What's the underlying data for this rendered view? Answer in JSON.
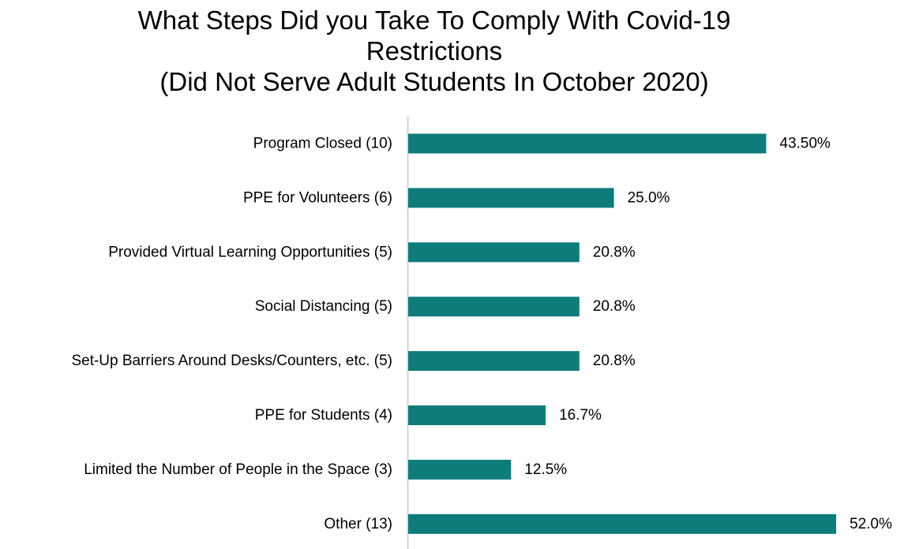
{
  "chart_data": {
    "type": "bar",
    "orientation": "horizontal",
    "title_lines": [
      "What Steps Did you Take To Comply With Covid-19",
      "Restrictions",
      "(Did Not Serve Adult Students In October 2020)"
    ],
    "categories": [
      "Program Closed (10)",
      "PPE for Volunteers (6)",
      "Provided Virtual Learning Opportunities (5)",
      "Social Distancing (5)",
      "Set-Up Barriers Around Desks/Counters, etc. (5)",
      "PPE for Students (4)",
      "Limited the Number of People in the Space (3)",
      "Other (13)"
    ],
    "values": [
      43.5,
      25.0,
      20.8,
      20.8,
      20.8,
      16.7,
      12.5,
      52.0
    ],
    "value_labels": [
      "43.50%",
      "25.0%",
      "20.8%",
      "20.8%",
      "20.8%",
      "16.7%",
      "12.5%",
      "52.0%"
    ],
    "xlim": [
      0,
      52
    ],
    "grid": false,
    "legend": "none",
    "bar_color": "#0e7c7b",
    "axis_color": "#d0d0d0"
  }
}
